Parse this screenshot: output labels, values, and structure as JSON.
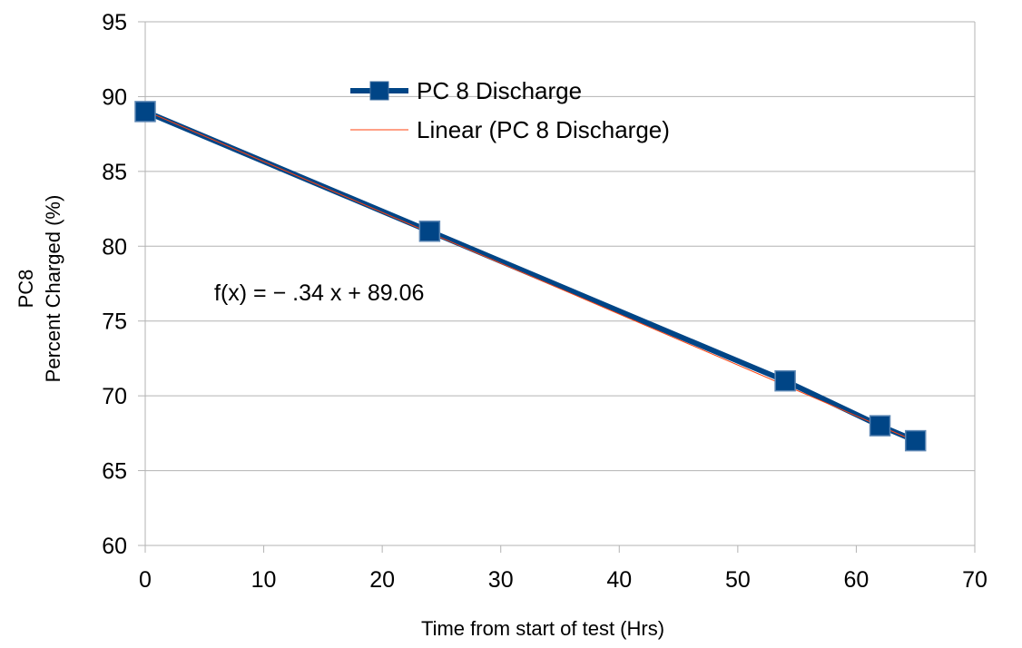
{
  "chart_data": {
    "type": "scatter",
    "title": "",
    "xlabel": "Time from start of test (Hrs)",
    "ylabel_lines": [
      "PC8",
      "Percent Charged (%)"
    ],
    "xlim": [
      0,
      70
    ],
    "ylim": [
      60,
      95
    ],
    "x_ticks": [
      0,
      10,
      20,
      30,
      40,
      50,
      60,
      70
    ],
    "y_ticks": [
      60,
      65,
      70,
      75,
      80,
      85,
      90,
      95
    ],
    "grid": "horizontal",
    "legend_position": "top-center",
    "series": [
      {
        "name": "PC 8 Discharge",
        "x": [
          0,
          24,
          54,
          62,
          65
        ],
        "y": [
          89,
          81,
          71,
          68,
          67
        ],
        "color": "#004586",
        "marker": "square"
      }
    ],
    "trendline": {
      "name": "Linear (PC 8 Discharge)",
      "slope": -0.34,
      "intercept": 89.06,
      "x_range": [
        0,
        65
      ],
      "color": "#ff420e"
    },
    "annotations": {
      "equation": "f(x) = − .34 x + 89.06"
    }
  }
}
